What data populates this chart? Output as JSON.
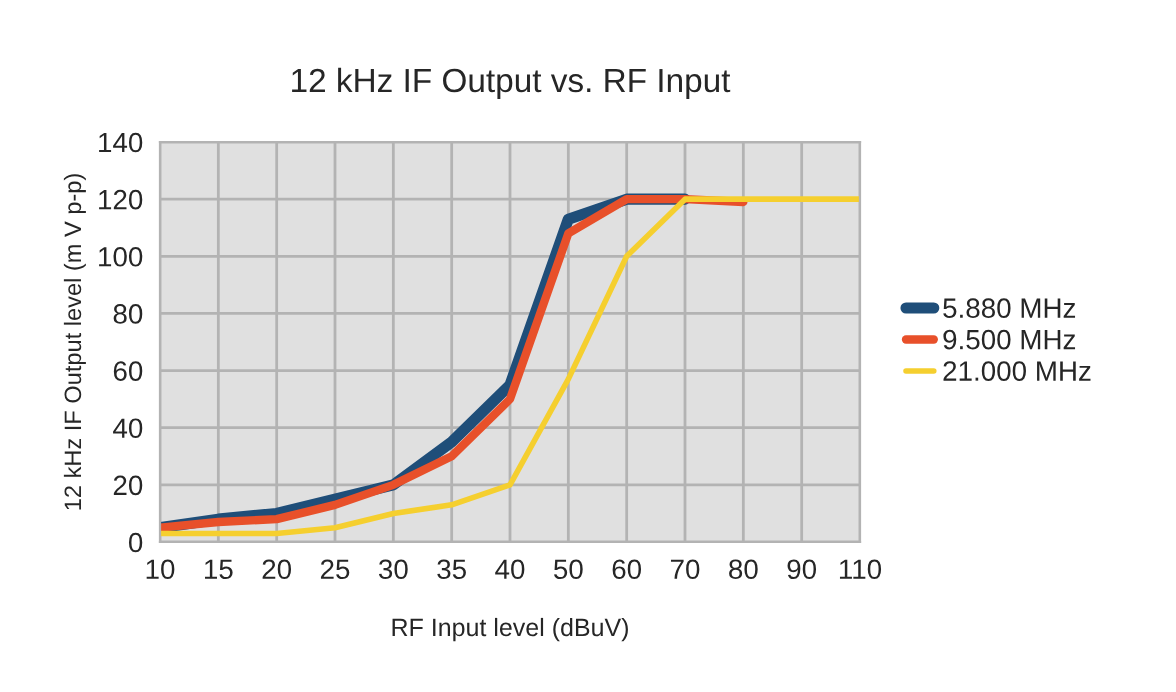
{
  "chart_data": {
    "type": "line",
    "title": "12 kHz IF Output vs. RF Input",
    "xlabel": "RF Input level (dBuV)",
    "ylabel": "12 kHz IF Output level (m V p-p)",
    "categories": [
      "10",
      "15",
      "20",
      "25",
      "30",
      "35",
      "40",
      "50",
      "60",
      "70",
      "80",
      "90",
      "110"
    ],
    "series": [
      {
        "name": "5.880 MHz",
        "color": "#1f4e79",
        "values": [
          5,
          8,
          10,
          15,
          20,
          35,
          55,
          113,
          120,
          120,
          null,
          null,
          null
        ]
      },
      {
        "name": "9.500 MHz",
        "color": "#e8502a",
        "values": [
          5,
          7,
          8,
          13,
          20,
          30,
          50,
          108,
          120,
          120,
          119,
          null,
          null
        ]
      },
      {
        "name": "21.000 MHz",
        "color": "#f5cf2f",
        "values": [
          3,
          3,
          3,
          5,
          10,
          13,
          20,
          57,
          100,
          120,
          120,
          120,
          120
        ]
      }
    ],
    "ylim": [
      0,
      140
    ],
    "yticks": [
      0,
      20,
      40,
      60,
      80,
      100,
      120,
      140
    ],
    "grid": true,
    "legend": "right",
    "marker": "none",
    "line_style": "solid"
  }
}
